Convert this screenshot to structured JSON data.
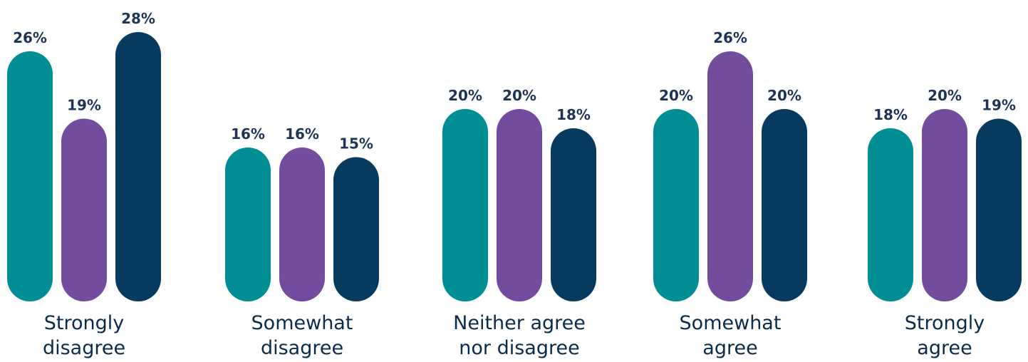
{
  "chart_data": {
    "type": "bar",
    "title": "",
    "xlabel": "",
    "ylabel": "",
    "ylim": [
      0,
      30
    ],
    "grid": false,
    "legend": "none",
    "value_suffix": "%",
    "categories": [
      [
        "Strongly",
        "disagree"
      ],
      [
        "Somewhat",
        "disagree"
      ],
      [
        "Neither agree",
        "nor disagree"
      ],
      [
        "Somewhat",
        "agree"
      ],
      [
        "Strongly",
        "agree"
      ]
    ],
    "series": [
      {
        "color": "#008e94",
        "values": [
          26,
          16,
          20,
          20,
          18
        ]
      },
      {
        "color": "#734c9d",
        "values": [
          19,
          16,
          20,
          26,
          20
        ]
      },
      {
        "color": "#073a5f",
        "values": [
          28,
          15,
          18,
          20,
          19
        ]
      }
    ]
  }
}
